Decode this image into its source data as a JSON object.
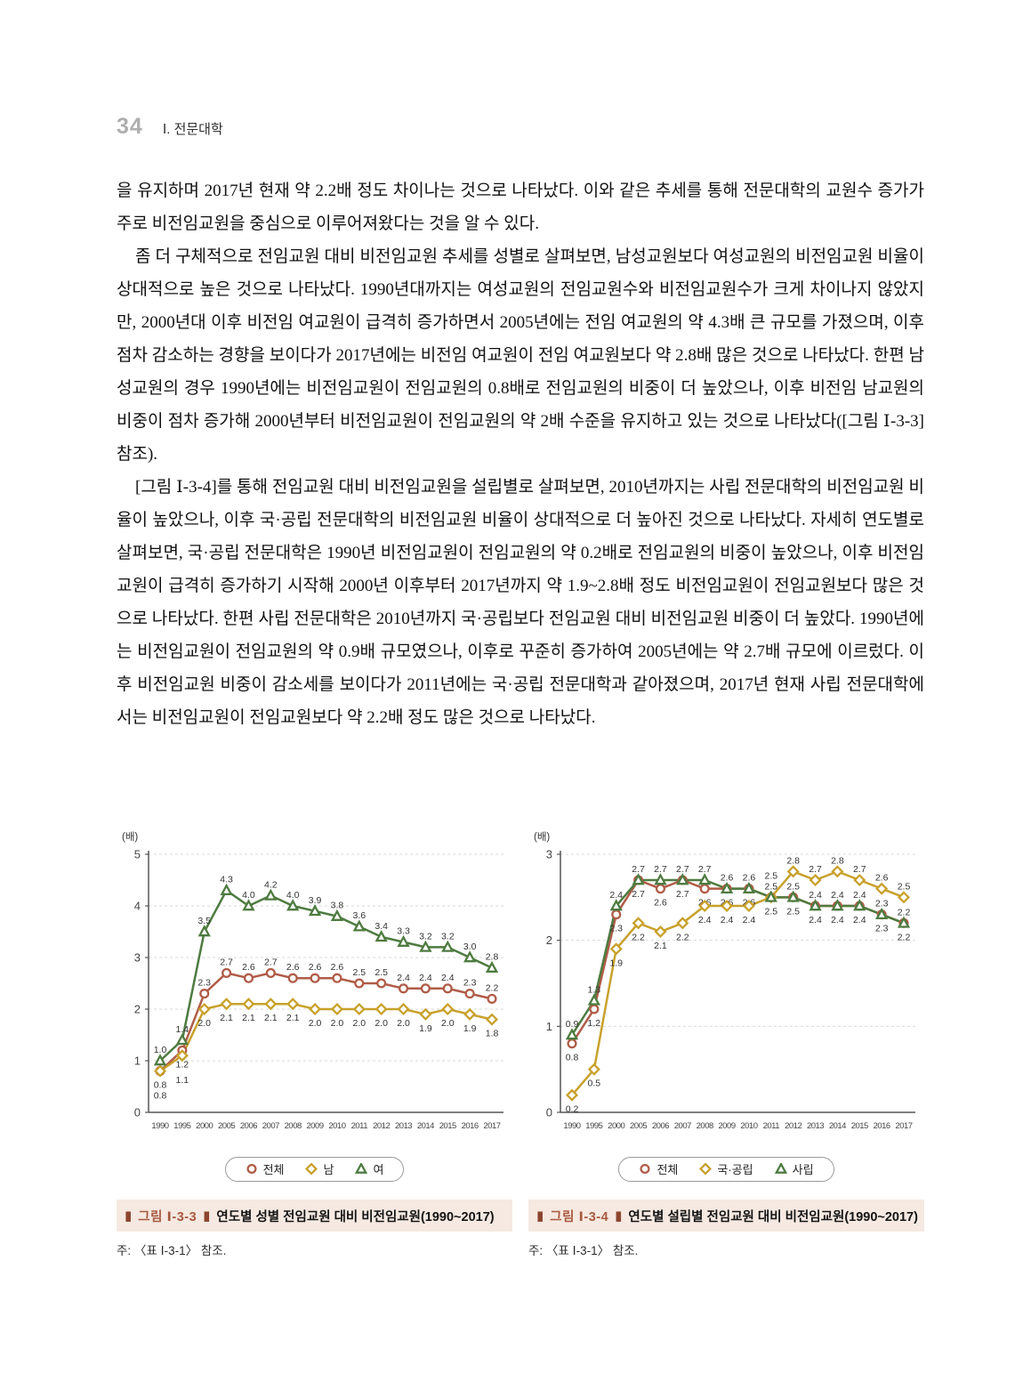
{
  "page_header": {
    "page_number": "34",
    "section": "Ⅰ. 전문대학"
  },
  "paragraphs": [
    {
      "text": "을 유지하며 2017년 현재 약 2.2배 정도 차이나는 것으로 나타났다. 이와 같은 추세를 통해 전문대학의 교원수 증가가 주로 비전임교원을 중심으로 이루어져왔다는 것을 알 수 있다."
    },
    {
      "text": "좀 더 구체적으로 전임교원 대비 비전임교원 추세를 성별로 살펴보면, 남성교원보다 여성교원의 비전임교원 비율이 상대적으로 높은 것으로 나타났다. 1990년대까지는 여성교원의 전임교원수와 비전임교원수가 크게 차이나지 않았지만, 2000년대 이후 비전임 여교원이 급격히 증가하면서 2005년에는 전임 여교원의 약 4.3배 큰 규모를 가졌으며, 이후 점차 감소하는 경향을 보이다가 2017년에는 비전임 여교원이 전임 여교원보다 약 2.8배 많은 것으로 나타났다. 한편 남성교원의 경우 1990년에는 비전임교원이 전임교원의 0.8배로 전임교원의 비중이 더 높았으나, 이후 비전임 남교원의 비중이 점차 증가해 2000년부터 비전임교원이 전임교원의 약 2배 수준을 유지하고 있는 것으로 나타났다([그림 Ⅰ-3-3] 참조)."
    },
    {
      "text": "[그림 Ⅰ-3-4]를 통해 전임교원 대비 비전임교원을 설립별로 살펴보면, 2010년까지는 사립 전문대학의 비전임교원 비율이 높았으나, 이후 국·공립 전문대학의 비전임교원 비율이 상대적으로 더 높아진 것으로 나타났다. 자세히 연도별로 살펴보면, 국·공립 전문대학은 1990년 비전임교원이 전임교원의 약 0.2배로 전임교원의 비중이 높았으나, 이후 비전임교원이 급격히 증가하기 시작해 2000년 이후부터 2017년까지 약 1.9~2.8배 정도 비전임교원이 전임교원보다 많은 것으로 나타났다. 한편 사립 전문대학은 2010년까지 국·공립보다 전임교원 대비 비전임교원 비중이 더 높았다. 1990년에는 비전임교원이 전임교원의 약 0.9배 규모였으나, 이후로 꾸준히 증가하여 2005년에는 약 2.7배 규모에 이르렀다. 이후 비전임교원 비중이 감소세를 보이다가 2011년에는 국·공립 전문대학과 같아졌으며, 2017년 현재 사립 전문대학에서는 비전임교원이 전임교원보다 약 2.2배 정도 많은 것으로 나타났다."
    }
  ],
  "captions": [
    {
      "marker": "▮",
      "fig_label": "그림  Ⅰ-3-3",
      "title": "연도별 성별 전임교원 대비 비전임교원(1990~2017)",
      "note": "주: 〈표  Ⅰ-3-1〉 참조."
    },
    {
      "marker": "▮",
      "fig_label": "그림  Ⅰ-3-4",
      "title": "연도별 설립별 전임교원 대비 비전임교원(1990~2017)",
      "note": "주: 〈표  Ⅰ-3-1〉 참조."
    }
  ],
  "colors": {
    "total": "#b05c48",
    "male_public": "#c8a12b",
    "female_private": "#4e7b40",
    "caption_accent": "#a8593f",
    "caption_bg": "#f5e9e1",
    "grid": "#d9d9d9",
    "axis": "#555555"
  },
  "chart_data": [
    {
      "type": "line",
      "title": "연도별 성별 전임교원 대비 비전임교원(1990~2017)",
      "unit_label": "(배)",
      "grid": true,
      "legend_position": "bottom",
      "categories": [
        "1990",
        "1995",
        "2000",
        "2005",
        "2006",
        "2007",
        "2008",
        "2009",
        "2010",
        "2011",
        "2012",
        "2013",
        "2014",
        "2015",
        "2016",
        "2017"
      ],
      "ylim": [
        0,
        5
      ],
      "yticks": [
        0,
        1,
        2,
        3,
        4,
        5
      ],
      "series": [
        {
          "name": "전체",
          "color": "#b05c48",
          "marker": "circle",
          "values": [
            0.8,
            1.2,
            2.3,
            2.7,
            2.6,
            2.7,
            2.6,
            2.6,
            2.6,
            2.5,
            2.5,
            2.4,
            2.4,
            2.4,
            2.3,
            2.2
          ],
          "label_side": [
            "b",
            "b",
            "a",
            "a",
            "a",
            "a",
            "a",
            "a",
            "a",
            "a",
            "a",
            "a",
            "a",
            "a",
            "a",
            "a"
          ]
        },
        {
          "name": "남",
          "color": "#c8a12b",
          "marker": "diamond",
          "values": [
            0.8,
            1.1,
            2.0,
            2.1,
            2.1,
            2.1,
            2.1,
            2.0,
            2.0,
            2.0,
            2.0,
            2.0,
            1.9,
            2.0,
            1.9,
            1.8
          ],
          "label_side": [
            "b",
            "b",
            "b",
            "b",
            "b",
            "b",
            "b",
            "b",
            "b",
            "b",
            "b",
            "b",
            "b",
            "b",
            "b",
            "b"
          ]
        },
        {
          "name": "여",
          "color": "#4e7b40",
          "marker": "triangle",
          "values": [
            1.0,
            1.4,
            3.5,
            4.3,
            4.0,
            4.2,
            4.0,
            3.9,
            3.8,
            3.6,
            3.4,
            3.3,
            3.2,
            3.2,
            3.0,
            2.8
          ],
          "label_side": [
            "a",
            "a",
            "a",
            "a",
            "a",
            "a",
            "a",
            "a",
            "a",
            "a",
            "a",
            "a",
            "a",
            "a",
            "a",
            "a"
          ]
        }
      ]
    },
    {
      "type": "line",
      "title": "연도별 설립별 전임교원 대비 비전임교원(1990~2017)",
      "unit_label": "(배)",
      "grid": true,
      "legend_position": "bottom",
      "categories": [
        "1990",
        "1995",
        "2000",
        "2005",
        "2006",
        "2007",
        "2008",
        "2009",
        "2010",
        "2011",
        "2012",
        "2013",
        "2014",
        "2015",
        "2016",
        "2017"
      ],
      "ylim": [
        0,
        3
      ],
      "yticks": [
        0,
        1,
        2,
        3
      ],
      "series": [
        {
          "name": "전체",
          "color": "#b05c48",
          "marker": "circle",
          "values": [
            0.8,
            1.2,
            2.3,
            2.7,
            2.6,
            2.7,
            2.6,
            2.6,
            2.6,
            2.5,
            2.5,
            2.4,
            2.4,
            2.4,
            2.3,
            2.2
          ],
          "label_side": [
            "b",
            "b",
            "b",
            "b",
            "b",
            "b",
            "b",
            "b",
            "b",
            "b",
            "b",
            "b",
            "b",
            "b",
            "b",
            "b"
          ]
        },
        {
          "name": "국·공립",
          "color": "#c8a12b",
          "marker": "diamond",
          "values": [
            0.2,
            0.5,
            1.9,
            2.2,
            2.1,
            2.2,
            2.4,
            2.4,
            2.4,
            2.5,
            2.8,
            2.7,
            2.8,
            2.7,
            2.6,
            2.5
          ],
          "label_side": [
            "b",
            "b",
            "b",
            "b",
            "b",
            "b",
            "b",
            "b",
            "b",
            "a",
            "a",
            "a",
            "a",
            "a",
            "a",
            "a"
          ]
        },
        {
          "name": "사립",
          "color": "#4e7b40",
          "marker": "triangle",
          "values": [
            0.9,
            1.3,
            2.4,
            2.7,
            2.7,
            2.7,
            2.7,
            2.6,
            2.6,
            2.5,
            2.5,
            2.4,
            2.4,
            2.4,
            2.3,
            2.2
          ],
          "label_side": [
            "a",
            "a",
            "a",
            "a",
            "a",
            "a",
            "a",
            "a",
            "a",
            "a",
            "a",
            "a",
            "a",
            "a",
            "a",
            "a"
          ]
        }
      ]
    }
  ]
}
